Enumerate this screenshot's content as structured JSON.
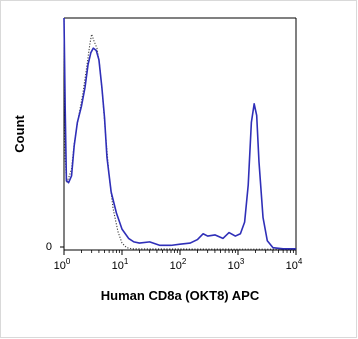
{
  "chart_data": {
    "type": "line",
    "xlabel": "Human CD8a (OKT8) APC",
    "ylabel": "Count",
    "x_scale": "log",
    "xlim": [
      1,
      10000
    ],
    "x_ticks": [
      {
        "base": "10",
        "exp": "0",
        "value": 1
      },
      {
        "base": "10",
        "exp": "1",
        "value": 10
      },
      {
        "base": "10",
        "exp": "2",
        "value": 100
      },
      {
        "base": "10",
        "exp": "3",
        "value": 1000
      },
      {
        "base": "10",
        "exp": "4",
        "value": 10000
      }
    ],
    "y_ticks": [
      {
        "label": "0",
        "value": 0
      }
    ],
    "ylim": [
      0,
      100
    ],
    "grid": false,
    "series": [
      {
        "style": "solid",
        "color": "#2f2fb8",
        "points": [
          [
            1.0,
            100
          ],
          [
            1.05,
            60
          ],
          [
            1.1,
            30
          ],
          [
            1.2,
            29
          ],
          [
            1.35,
            32
          ],
          [
            1.5,
            45
          ],
          [
            1.7,
            55
          ],
          [
            2.0,
            62
          ],
          [
            2.3,
            70
          ],
          [
            2.6,
            80
          ],
          [
            2.9,
            85
          ],
          [
            3.2,
            87
          ],
          [
            3.6,
            86
          ],
          [
            4.0,
            82
          ],
          [
            4.5,
            70
          ],
          [
            5.0,
            57
          ],
          [
            5.5,
            40
          ],
          [
            6.5,
            25
          ],
          [
            8.0,
            16
          ],
          [
            10.0,
            9
          ],
          [
            13,
            5
          ],
          [
            16,
            3.5
          ],
          [
            20,
            3
          ],
          [
            30,
            3.5
          ],
          [
            45,
            2
          ],
          [
            70,
            2
          ],
          [
            100,
            2.5
          ],
          [
            150,
            3
          ],
          [
            200,
            4.5
          ],
          [
            250,
            7
          ],
          [
            300,
            6
          ],
          [
            400,
            6.5
          ],
          [
            550,
            5
          ],
          [
            700,
            7.5
          ],
          [
            900,
            6
          ],
          [
            1100,
            7
          ],
          [
            1300,
            12
          ],
          [
            1500,
            28
          ],
          [
            1700,
            55
          ],
          [
            1900,
            63
          ],
          [
            2100,
            58
          ],
          [
            2300,
            38
          ],
          [
            2700,
            14
          ],
          [
            3200,
            4
          ],
          [
            4000,
            1
          ],
          [
            6000,
            0.5
          ],
          [
            10000,
            0.5
          ]
        ]
      },
      {
        "style": "dotted",
        "color": "#444444",
        "points": [
          [
            1.0,
            100
          ],
          [
            1.05,
            40
          ],
          [
            1.1,
            29
          ],
          [
            1.2,
            31
          ],
          [
            1.35,
            35
          ],
          [
            1.5,
            46
          ],
          [
            1.8,
            58
          ],
          [
            2.1,
            67
          ],
          [
            2.5,
            80
          ],
          [
            2.8,
            89
          ],
          [
            3.0,
            93
          ],
          [
            3.3,
            90
          ],
          [
            3.7,
            87
          ],
          [
            4.1,
            80
          ],
          [
            4.6,
            67
          ],
          [
            5.2,
            50
          ],
          [
            6.0,
            32
          ],
          [
            7.0,
            18
          ],
          [
            8.5,
            8
          ],
          [
            10,
            3
          ],
          [
            12,
            1
          ],
          [
            15,
            0.5
          ],
          [
            10000,
            0.3
          ]
        ]
      }
    ]
  }
}
